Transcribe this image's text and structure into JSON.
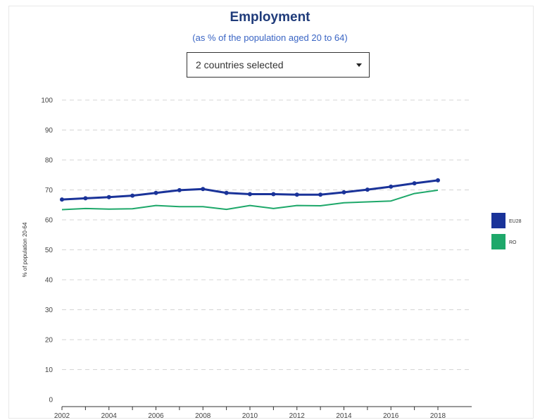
{
  "dropdown": {
    "label": "2 countries selected"
  },
  "chart_data": {
    "type": "line",
    "title": "Employment",
    "subtitle": "(as % of the population aged 20 to 64)",
    "ylabel": "% of population 20-64",
    "xlabel": "",
    "ylim": [
      0,
      100
    ],
    "yticks": [
      0,
      10,
      20,
      30,
      40,
      50,
      60,
      70,
      80,
      90,
      100
    ],
    "xticks": [
      2002,
      2004,
      2006,
      2008,
      2010,
      2012,
      2014,
      2016,
      2018
    ],
    "x": [
      2002,
      2003,
      2004,
      2005,
      2006,
      2007,
      2008,
      2009,
      2010,
      2011,
      2012,
      2013,
      2014,
      2015,
      2016,
      2017,
      2018
    ],
    "grid": true,
    "legend": "right",
    "series": [
      {
        "name": "EU28",
        "color": "#1a3399",
        "values": [
          66.8,
          67.2,
          67.6,
          68.1,
          69.0,
          69.9,
          70.3,
          69.0,
          68.6,
          68.6,
          68.4,
          68.4,
          69.2,
          70.1,
          71.1,
          72.2,
          73.2
        ]
      },
      {
        "name": "RO",
        "color": "#1ea86a",
        "values": [
          63.4,
          63.8,
          63.6,
          63.7,
          64.8,
          64.4,
          64.4,
          63.5,
          64.8,
          63.8,
          64.8,
          64.7,
          65.7,
          66.0,
          66.3,
          68.8,
          69.9
        ]
      }
    ]
  }
}
